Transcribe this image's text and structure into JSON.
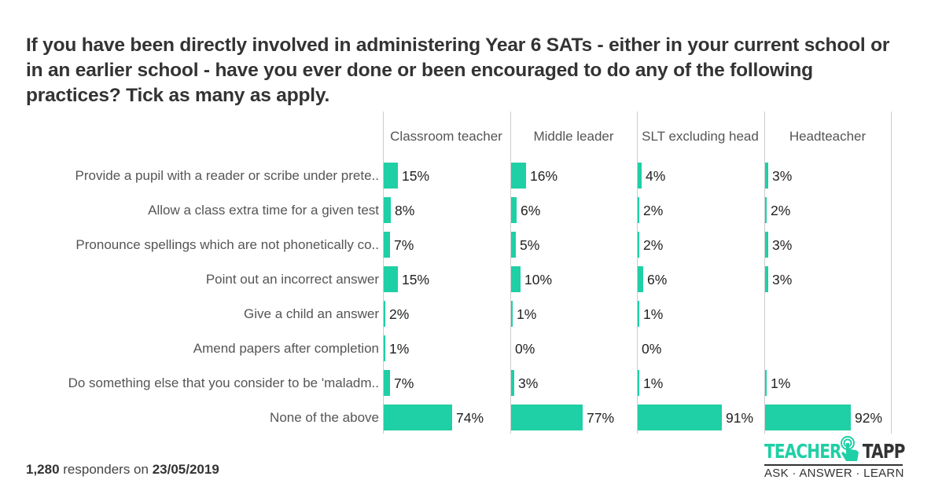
{
  "title": "If you have been directly involved in administering Year 6 SATs - either in your current school or in an earlier school - have you ever done or been encouraged to do any of the following practices? Tick as many as apply.",
  "colors": {
    "bar": "#1fcfa5",
    "divider": "#cccccc",
    "text": "#333333"
  },
  "chart_data": {
    "type": "bar",
    "orientation": "horizontal",
    "title": "If you have been directly involved in administering Year 6 SATs - either in your current school or in an earlier school - have you ever done or been encouraged to do any of the following practices? Tick as many as apply.",
    "xlabel": "",
    "ylabel": "",
    "xlim": [
      0,
      100
    ],
    "grid": false,
    "unit": "%",
    "categories": [
      "Provide a pupil with a reader or scribe under prete..",
      "Allow a class extra time for a given test",
      "Pronounce spellings which are not phonetically co..",
      "Point out an incorrect answer",
      "Give a child an answer",
      "Amend papers after completion",
      "Do something else that you consider to be 'maladm..",
      "None of the above"
    ],
    "series": [
      {
        "name": "Classroom teacher",
        "values": [
          15,
          8,
          7,
          15,
          2,
          1,
          7,
          74
        ],
        "labels": [
          "15%",
          "8%",
          "7%",
          "15%",
          "2%",
          "1%",
          "7%",
          "74%"
        ]
      },
      {
        "name": "Middle leader",
        "values": [
          16,
          6,
          5,
          10,
          1,
          0,
          3,
          77
        ],
        "labels": [
          "16%",
          "6%",
          "5%",
          "10%",
          "1%",
          "0%",
          "3%",
          "77%"
        ]
      },
      {
        "name": "SLT excluding head",
        "values": [
          4,
          2,
          2,
          6,
          1,
          0,
          1,
          91
        ],
        "labels": [
          "4%",
          "2%",
          "2%",
          "6%",
          "1%",
          "0%",
          "1%",
          "91%"
        ]
      },
      {
        "name": "Headteacher",
        "values": [
          3,
          2,
          3,
          3,
          null,
          null,
          1,
          92
        ],
        "labels": [
          "3%",
          "2%",
          "3%",
          "3%",
          "",
          "",
          "1%",
          "92%"
        ]
      }
    ]
  },
  "footer": {
    "count": "1,280",
    "middle": " responders on ",
    "date": "23/05/2019"
  },
  "logo": {
    "word1": "TEACHER",
    "word2": "TAPP",
    "tagline": "ASK · ANSWER · LEARN"
  }
}
